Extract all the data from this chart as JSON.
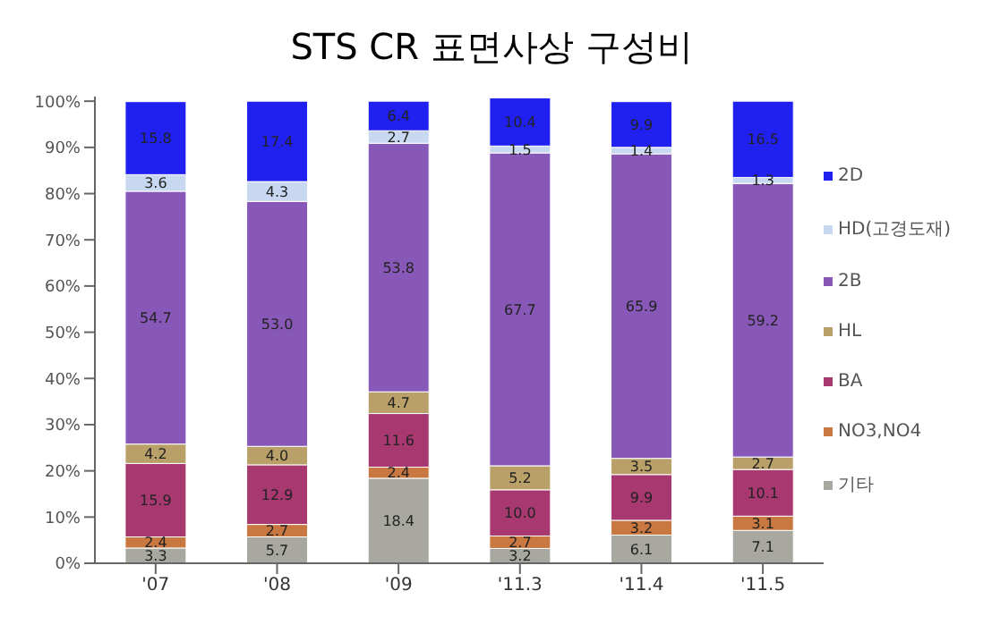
{
  "chart_data": {
    "type": "bar",
    "title": "STS CR 표면사상 구성비",
    "stacked": true,
    "categories": [
      "'07",
      "'08",
      "'09",
      "'11.3",
      "'11.4",
      "'11.5"
    ],
    "series": [
      {
        "name": "기타",
        "color": "#a8a8a0",
        "values": [
          3.3,
          5.7,
          18.4,
          3.2,
          6.1,
          7.1
        ]
      },
      {
        "name": "NO3,NO4",
        "color": "#c87840",
        "values": [
          2.4,
          2.7,
          2.4,
          2.7,
          3.2,
          3.1
        ]
      },
      {
        "name": "BA",
        "color": "#a83870",
        "values": [
          15.9,
          12.9,
          11.6,
          10.0,
          9.9,
          10.1
        ],
        "value_labels": [
          "15.9",
          "12.9",
          "11.6",
          "10.0",
          "9.9",
          "10.1"
        ]
      },
      {
        "name": "HL",
        "color": "#b8a068",
        "values": [
          4.2,
          4.0,
          4.7,
          5.2,
          3.5,
          2.7
        ],
        "value_labels": [
          "4.2",
          "4.0",
          "4.7",
          "5.2",
          "3.5",
          "2.7"
        ]
      },
      {
        "name": "2B",
        "color": "#8858b8",
        "values": [
          54.7,
          53.0,
          53.8,
          67.7,
          65.9,
          59.2
        ],
        "value_labels": [
          "54.7",
          "53.0",
          "53.8",
          "67.7",
          "65.9",
          "59.2"
        ]
      },
      {
        "name": "HD(고경도재)",
        "color": "#c8d8f0",
        "values": [
          3.6,
          4.3,
          2.7,
          1.5,
          1.4,
          1.3
        ]
      },
      {
        "name": "2D",
        "color": "#2020f0",
        "values": [
          15.8,
          17.4,
          6.4,
          10.4,
          9.9,
          16.5
        ]
      }
    ],
    "ylim": [
      0,
      101
    ],
    "yticks": [
      {
        "value": 0,
        "label": "0%"
      },
      {
        "value": 10,
        "label": "10%"
      },
      {
        "value": 20,
        "label": "20%"
      },
      {
        "value": 30,
        "label": "30%"
      },
      {
        "value": 40,
        "label": "40%"
      },
      {
        "value": 50,
        "label": "50%"
      },
      {
        "value": 60,
        "label": "60%"
      },
      {
        "value": 70,
        "label": "70%"
      },
      {
        "value": 80,
        "label": "80%"
      },
      {
        "value": 90,
        "label": "90%"
      },
      {
        "value": 100,
        "label": "100%"
      }
    ],
    "data_labels": true,
    "legend": "right",
    "grid": false
  }
}
